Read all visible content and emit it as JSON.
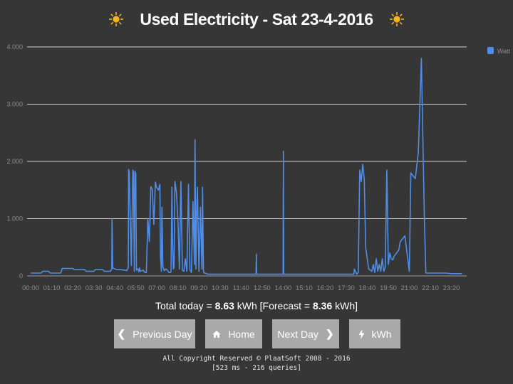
{
  "header": {
    "title": "Used Electricity - Sat 23-4-2016",
    "icon_left": "sun-icon",
    "icon_right": "sun-icon",
    "sun_color": "#f5b320"
  },
  "chart_data": {
    "type": "line",
    "title": "",
    "xlabel": "",
    "ylabel": "",
    "ylim": [
      0,
      4000
    ],
    "y_ticks": [
      "0",
      "1.000",
      "2.000",
      "3.000",
      "4.000"
    ],
    "x_ticks": [
      "00:00",
      "01:10",
      "02:20",
      "03:30",
      "04:40",
      "05:50",
      "07:00",
      "08:10",
      "09:20",
      "10:30",
      "11:40",
      "12:50",
      "14:00",
      "15:10",
      "16:20",
      "17:30",
      "18:40",
      "19:50",
      "21:00",
      "22:10",
      "23:20"
    ],
    "legend": {
      "placement": "top-right"
    },
    "grid": true,
    "series": [
      {
        "name": "Watt",
        "color": "#4f8de6",
        "x": [
          "00:00",
          "00:35",
          "00:40",
          "01:00",
          "01:05",
          "01:40",
          "01:45",
          "02:20",
          "02:25",
          "03:00",
          "03:05",
          "03:30",
          "03:35",
          "04:00",
          "04:05",
          "04:25",
          "04:30",
          "04:31",
          "04:33",
          "04:45",
          "05:00",
          "05:20",
          "05:25",
          "05:26",
          "05:28",
          "05:35",
          "05:40",
          "05:42",
          "05:45",
          "05:47",
          "05:50",
          "05:52",
          "05:55",
          "05:57",
          "06:00",
          "06:02",
          "06:05",
          "06:10",
          "06:15",
          "06:20",
          "06:25",
          "06:30",
          "06:35",
          "06:40",
          "06:45",
          "06:50",
          "06:55",
          "06:56",
          "06:58",
          "07:05",
          "07:10",
          "07:12",
          "07:15",
          "07:17",
          "07:20",
          "07:25",
          "07:30",
          "07:35",
          "07:40",
          "07:45",
          "07:47",
          "07:50",
          "07:52",
          "07:55",
          "07:57",
          "08:00",
          "08:05",
          "08:10",
          "08:15",
          "08:20",
          "08:25",
          "08:30",
          "08:35",
          "08:40",
          "08:45",
          "08:50",
          "08:55",
          "09:00",
          "09:05",
          "09:07",
          "09:10",
          "09:12",
          "09:15",
          "09:20",
          "09:25",
          "09:30",
          "09:32",
          "09:35",
          "09:37",
          "09:40",
          "09:45",
          "09:50",
          "10:00",
          "10:05",
          "10:10",
          "10:12",
          "10:20",
          "10:25",
          "11:00",
          "11:40",
          "12:30",
          "12:31",
          "12:32",
          "12:50",
          "13:30",
          "14:00",
          "14:01",
          "14:02",
          "14:30",
          "15:10",
          "16:20",
          "17:30",
          "17:55",
          "17:56",
          "17:57",
          "18:05",
          "18:10",
          "18:15",
          "18:20",
          "18:25",
          "18:30",
          "18:35",
          "18:40",
          "18:45",
          "18:50",
          "18:55",
          "19:00",
          "19:05",
          "19:10",
          "19:15",
          "19:20",
          "19:25",
          "19:30",
          "19:35",
          "19:40",
          "19:45",
          "19:50",
          "19:55",
          "20:00",
          "20:05",
          "20:10",
          "20:15",
          "20:20",
          "20:25",
          "20:30",
          "20:45",
          "21:00",
          "21:05",
          "21:20",
          "21:30",
          "21:40",
          "21:50",
          "21:55",
          "22:00",
          "22:10",
          "22:20",
          "22:40",
          "22:55",
          "23:00",
          "23:20",
          "23:40",
          "23:55"
        ],
        "y": [
          50,
          50,
          80,
          80,
          50,
          50,
          130,
          130,
          110,
          110,
          80,
          80,
          110,
          110,
          80,
          80,
          120,
          1000,
          140,
          110,
          110,
          95,
          150,
          1860,
          1820,
          180,
          1850,
          1810,
          80,
          1830,
          1780,
          100,
          120,
          120,
          70,
          140,
          80,
          90,
          100,
          60,
          60,
          1000,
          600,
          1560,
          1510,
          900,
          1640,
          1620,
          1560,
          1500,
          1600,
          350,
          80,
          1200,
          160,
          90,
          120,
          100,
          60,
          60,
          70,
          1550,
          600,
          120,
          150,
          1650,
          1460,
          980,
          120,
          1650,
          100,
          80,
          300,
          80,
          1600,
          110,
          60,
          1300,
          200,
          2380,
          120,
          950,
          1550,
          80,
          1200,
          120,
          1550,
          100,
          50,
          50,
          40,
          30,
          30,
          30,
          30,
          30,
          30,
          30,
          30,
          30,
          30,
          380,
          30,
          30,
          30,
          30,
          2180,
          30,
          30,
          30,
          30,
          30,
          30,
          50,
          120,
          30,
          60,
          1850,
          1650,
          1950,
          1700,
          500,
          300,
          120,
          100,
          80,
          200,
          60,
          300,
          80,
          200,
          80,
          300,
          80,
          150,
          1850,
          200,
          400,
          300,
          280,
          350,
          380,
          420,
          450,
          600,
          700,
          80,
          1800,
          1700,
          2150,
          3800,
          1000,
          50,
          50,
          50,
          50,
          50,
          50,
          50,
          40,
          40,
          40
        ]
      }
    ]
  },
  "summary": {
    "prefix": "Total today = ",
    "total": "8.63",
    "unit1": " kWh [Forecast = ",
    "forecast": "8.36",
    "unit2": " kWh]"
  },
  "nav": {
    "prev_label": "Previous Day",
    "prev_icon": "chevron-left-icon",
    "home_label": "Home",
    "home_icon": "home-icon",
    "next_label": "Next Day",
    "next_icon": "chevron-right-icon",
    "kwh_label": "kWh",
    "kwh_icon": "lightning-icon"
  },
  "footer": {
    "line1": "All Copyright Reserved © PlaatSoft 2008 - 2016",
    "line2": "[523 ms - 216 queries]"
  }
}
